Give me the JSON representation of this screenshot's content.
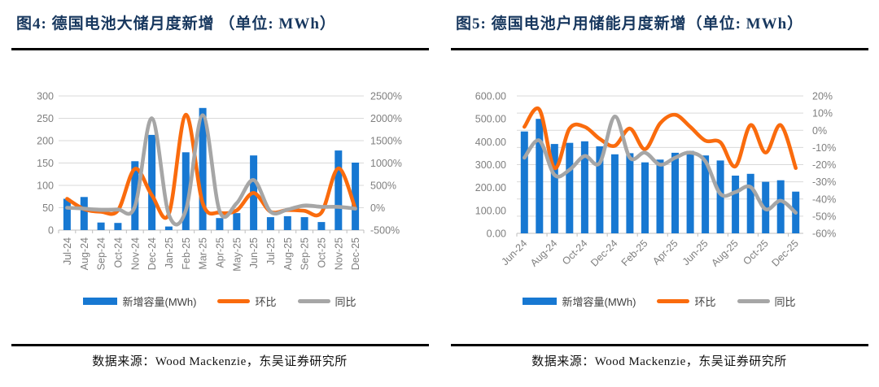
{
  "colors": {
    "bar": "#1778D2",
    "mom_line": "#FA6B0D",
    "yoy_line": "#A6A6A6",
    "grid": "#D9D9D9",
    "axis_text": "#7F7F7F",
    "tick": "#BFBFBF",
    "title_text": "#17375E",
    "rule": "#000000",
    "source_text": "#111111",
    "legend_text": "#404040"
  },
  "panels": [
    {
      "title": "图4: 德国电池大储月度新增 （单位: MWh）",
      "legend": {
        "bar": "新增容量(MWh)",
        "mom": "环比",
        "yoy": "同比"
      },
      "source": "数据来源：Wood Mackenzie，东吴证券研究所"
    },
    {
      "title": "图5: 德国电池户用储能月度新增（单位: MWh）",
      "legend": {
        "bar": "新增容量(MWh)",
        "mom": "环比",
        "yoy": "同比"
      },
      "source": "数据来源：Wood Mackenzie，东吴证券研究所"
    }
  ],
  "chart_data": [
    {
      "type": "bar",
      "title": "图4: 德国电池大储月度新增 （单位: MWh）",
      "categories": [
        "Jul-24",
        "Aug-24",
        "Sep-24",
        "Oct-24",
        "Nov-24",
        "Dec-24",
        "Jan-25",
        "Feb-25",
        "Mar-25",
        "Apr-25",
        "May-25",
        "Jun-25",
        "Jul-25",
        "Aug-25",
        "Sep-25",
        "Oct-25",
        "Nov-25",
        "Dec-25"
      ],
      "series": [
        {
          "name": "新增容量(MWh)",
          "type": "bar",
          "axis": "left",
          "color": "#1778D2",
          "values": [
            70,
            74,
            17,
            16,
            154,
            213,
            8,
            174,
            273,
            27,
            38,
            167,
            29,
            31,
            29,
            18,
            178,
            151
          ]
        },
        {
          "name": "环比",
          "type": "line",
          "axis": "right",
          "color": "#FA6B0D",
          "values": [
            200,
            -30,
            -90,
            -60,
            870,
            280,
            -140,
            2080,
            100,
            -110,
            -60,
            330,
            -90,
            -50,
            -70,
            -110,
            880,
            -20
          ]
        },
        {
          "name": "同比",
          "type": "line",
          "axis": "right",
          "color": "#A6A6A6",
          "values": [
            0,
            -20,
            -50,
            -40,
            30,
            2000,
            -150,
            -60,
            2070,
            -80,
            100,
            620,
            -90,
            -40,
            50,
            20,
            20,
            -20
          ]
        }
      ],
      "y_left": {
        "min": 0,
        "max": 300,
        "ticks": [
          "300",
          "250",
          "200",
          "150",
          "100",
          "50",
          "0"
        ]
      },
      "y_right": {
        "min": -500,
        "max": 2500,
        "ticks": [
          "2500%",
          "2000%",
          "1500%",
          "1000%",
          "500%",
          "0%",
          "-500%"
        ],
        "unit": "%"
      },
      "x_label_rotation": -90,
      "x_label_every": 1,
      "grid": true,
      "legend_position": "bottom"
    },
    {
      "type": "bar",
      "title": "图5: 德国电池户用储能月度新增（单位: MWh）",
      "categories": [
        "Jun-24",
        "Jul-24",
        "Aug-24",
        "Sep-24",
        "Oct-24",
        "Nov-24",
        "Dec-24",
        "Jan-25",
        "Feb-25",
        "Mar-25",
        "Apr-25",
        "May-25",
        "Jun-25",
        "Jul-25",
        "Aug-25",
        "Sep-25",
        "Oct-25",
        "Nov-25",
        "Dec-25"
      ],
      "series": [
        {
          "name": "新增容量(MWh)",
          "type": "bar",
          "axis": "left",
          "color": "#1778D2",
          "values": [
            445,
            500,
            390,
            395,
            402,
            380,
            345,
            350,
            310,
            322,
            352,
            360,
            340,
            318,
            252,
            260,
            225,
            232,
            182
          ]
        },
        {
          "name": "环比",
          "type": "line",
          "axis": "right",
          "color": "#FA6B0D",
          "values": [
            2,
            12,
            -22,
            1,
            2,
            -5,
            -9,
            1,
            -11,
            4,
            9,
            2,
            -6,
            -7,
            -21,
            3,
            -13,
            3,
            -22
          ]
        },
        {
          "name": "同比",
          "type": "line",
          "axis": "right",
          "color": "#A6A6A6",
          "values": [
            -16,
            -6,
            -26,
            -23,
            -15,
            -19,
            8,
            -16,
            -13,
            -20,
            -16,
            -13,
            -18,
            -37,
            -36,
            -33,
            -46,
            -41,
            -48
          ]
        }
      ],
      "y_left": {
        "min": 0,
        "max": 600,
        "ticks": [
          "600.00",
          "500.00",
          "400.00",
          "300.00",
          "200.00",
          "100.00",
          "0.00"
        ]
      },
      "y_right": {
        "min": -60,
        "max": 20,
        "ticks": [
          "20%",
          "10%",
          "0%",
          "-10%",
          "-20%",
          "-30%",
          "-40%",
          "-50%",
          "-60%"
        ],
        "unit": "%"
      },
      "x_label_rotation": -45,
      "x_label_every": 2,
      "grid": true,
      "legend_position": "bottom"
    }
  ]
}
